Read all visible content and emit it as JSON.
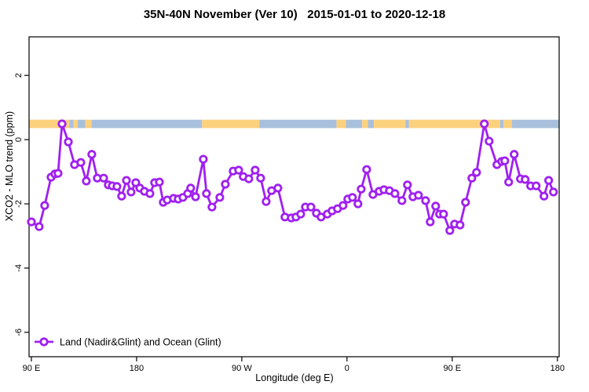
{
  "title": "35N-40N November (Ver 10)   2015-01-01 to 2020-12-18",
  "chart_data": {
    "type": "line",
    "title": "35N-40N November (Ver 10)   2015-01-01 to 2020-12-18",
    "xlabel": "Longitude (deg E)",
    "ylabel": "XCO2 - MLO trend (ppm)",
    "grid": false,
    "legend_position": "bottom-left",
    "x_axis": {
      "range": [
        88,
        541.5
      ],
      "ticks": [
        {
          "lon": 90,
          "label": "90 E"
        },
        {
          "lon": 180,
          "label": "180"
        },
        {
          "lon": 270,
          "label": "90 W"
        },
        {
          "lon": 360,
          "label": "0"
        },
        {
          "lon": 450,
          "label": "90 E"
        },
        {
          "lon": 540,
          "label": "180"
        }
      ]
    },
    "y_axis": {
      "range": [
        -6.76,
        3.2
      ],
      "ticks": [
        {
          "value": 2,
          "label": "2"
        },
        {
          "value": 0,
          "label": "0"
        },
        {
          "value": -2,
          "label": "-2"
        },
        {
          "value": -4,
          "label": "-4"
        },
        {
          "value": -6,
          "label": "-6"
        }
      ]
    },
    "band": {
      "description": "land-ocean surface type strip",
      "y_top": 0.62,
      "y_bottom": 0.36,
      "land_color": "#FCD17E",
      "ocean_color": "#A9C0DC",
      "segments": [
        {
          "from": 88,
          "to": 122.5,
          "type": "land"
        },
        {
          "from": 122.5,
          "to": 126,
          "type": "ocean"
        },
        {
          "from": 126,
          "to": 129.5,
          "type": "land"
        },
        {
          "from": 129.5,
          "to": 136,
          "type": "ocean"
        },
        {
          "from": 136,
          "to": 141.5,
          "type": "land"
        },
        {
          "from": 141.5,
          "to": 236,
          "type": "ocean"
        },
        {
          "from": 236,
          "to": 285,
          "type": "land"
        },
        {
          "from": 285,
          "to": 351,
          "type": "ocean"
        },
        {
          "from": 351,
          "to": 359,
          "type": "land"
        },
        {
          "from": 359,
          "to": 373,
          "type": "ocean"
        },
        {
          "from": 373,
          "to": 378,
          "type": "land"
        },
        {
          "from": 378,
          "to": 383,
          "type": "ocean"
        },
        {
          "from": 383,
          "to": 410,
          "type": "land"
        },
        {
          "from": 410,
          "to": 413,
          "type": "ocean"
        },
        {
          "from": 413,
          "to": 491,
          "type": "land"
        },
        {
          "from": 491,
          "to": 494,
          "type": "ocean"
        },
        {
          "from": 494,
          "to": 501,
          "type": "land"
        },
        {
          "from": 501,
          "to": 541.5,
          "type": "ocean"
        }
      ]
    },
    "series": [
      {
        "name": "Land (Nadir&Glint) and Ocean (Glint)",
        "color": "#A020F0",
        "marker": "open-circle",
        "points": [
          [
            90,
            -2.56
          ],
          [
            96.7,
            -2.71
          ],
          [
            101.4,
            -2.05
          ],
          [
            106.8,
            -1.17
          ],
          [
            110.1,
            -1.07
          ],
          [
            112.8,
            -1.05
          ],
          [
            116.2,
            0.49
          ],
          [
            121.6,
            -0.07
          ],
          [
            126.9,
            -0.78
          ],
          [
            132.3,
            -0.71
          ],
          [
            137,
            -1.29
          ],
          [
            141.7,
            -0.46
          ],
          [
            146.4,
            -1.2
          ],
          [
            151.8,
            -1.2
          ],
          [
            155.8,
            -1.41
          ],
          [
            159.2,
            -1.44
          ],
          [
            163.2,
            -1.46
          ],
          [
            167.2,
            -1.76
          ],
          [
            171.3,
            -1.27
          ],
          [
            175.3,
            -1.63
          ],
          [
            179.3,
            -1.34
          ],
          [
            182.7,
            -1.51
          ],
          [
            186.7,
            -1.61
          ],
          [
            191.4,
            -1.68
          ],
          [
            195.4,
            -1.34
          ],
          [
            199.5,
            -1.32
          ],
          [
            202.8,
            -1.95
          ],
          [
            206.2,
            -1.88
          ],
          [
            211.6,
            -1.83
          ],
          [
            215.6,
            -1.85
          ],
          [
            219.6,
            -1.8
          ],
          [
            223.7,
            -1.68
          ],
          [
            226.3,
            -1.51
          ],
          [
            230.4,
            -1.78
          ],
          [
            237.1,
            -0.61
          ],
          [
            239.8,
            -1.68
          ],
          [
            244.5,
            -2.1
          ],
          [
            251.2,
            -1.8
          ],
          [
            255.9,
            -1.39
          ],
          [
            262.6,
            -0.98
          ],
          [
            267.3,
            -0.95
          ],
          [
            271.3,
            -1.15
          ],
          [
            276,
            -1.22
          ],
          [
            281.4,
            -0.95
          ],
          [
            286.1,
            -1.2
          ],
          [
            290.8,
            -1.93
          ],
          [
            295.5,
            -1.59
          ],
          [
            300.9,
            -1.51
          ],
          [
            306.9,
            -2.41
          ],
          [
            312.3,
            -2.44
          ],
          [
            316.3,
            -2.41
          ],
          [
            320.4,
            -2.32
          ],
          [
            324.4,
            -2.1
          ],
          [
            329.1,
            -2.1
          ],
          [
            333.8,
            -2.29
          ],
          [
            337.8,
            -2.41
          ],
          [
            343.2,
            -2.32
          ],
          [
            347.2,
            -2.22
          ],
          [
            351.9,
            -2.15
          ],
          [
            356.6,
            -2.05
          ],
          [
            360.7,
            -1.85
          ],
          [
            364.7,
            -1.8
          ],
          [
            369.4,
            -2
          ],
          [
            372.1,
            -1.54
          ],
          [
            376.8,
            -0.93
          ],
          [
            382.2,
            -1.71
          ],
          [
            387.5,
            -1.61
          ],
          [
            391.6,
            -1.56
          ],
          [
            396.3,
            -1.59
          ],
          [
            401,
            -1.68
          ],
          [
            407,
            -1.9
          ],
          [
            411.7,
            -1.41
          ],
          [
            416.4,
            -1.78
          ],
          [
            421.1,
            -1.73
          ],
          [
            427.2,
            -1.9
          ],
          [
            431.2,
            -2.56
          ],
          [
            435.9,
            -2.07
          ],
          [
            439.2,
            -2.32
          ],
          [
            442.6,
            -2.32
          ],
          [
            448,
            -2.83
          ],
          [
            452,
            -2.63
          ],
          [
            456.7,
            -2.66
          ],
          [
            461.4,
            -1.95
          ],
          [
            466.8,
            -1.2
          ],
          [
            470.8,
            -1.02
          ],
          [
            477.5,
            0.49
          ],
          [
            481.6,
            -0.05
          ],
          [
            488.3,
            -0.78
          ],
          [
            492.3,
            -0.68
          ],
          [
            495,
            -0.66
          ],
          [
            498.3,
            -1.32
          ],
          [
            503,
            -0.46
          ],
          [
            508.4,
            -1.22
          ],
          [
            512.4,
            -1.24
          ],
          [
            517.1,
            -1.44
          ],
          [
            521.8,
            -1.44
          ],
          [
            528.5,
            -1.76
          ],
          [
            532.5,
            -1.27
          ],
          [
            536.6,
            -1.63
          ]
        ]
      }
    ]
  },
  "colors": {
    "line": "#A020F0",
    "band_land": "#FCD17E",
    "band_ocean": "#A9C0DC",
    "frame": "#000000",
    "background": "#ffffff"
  }
}
